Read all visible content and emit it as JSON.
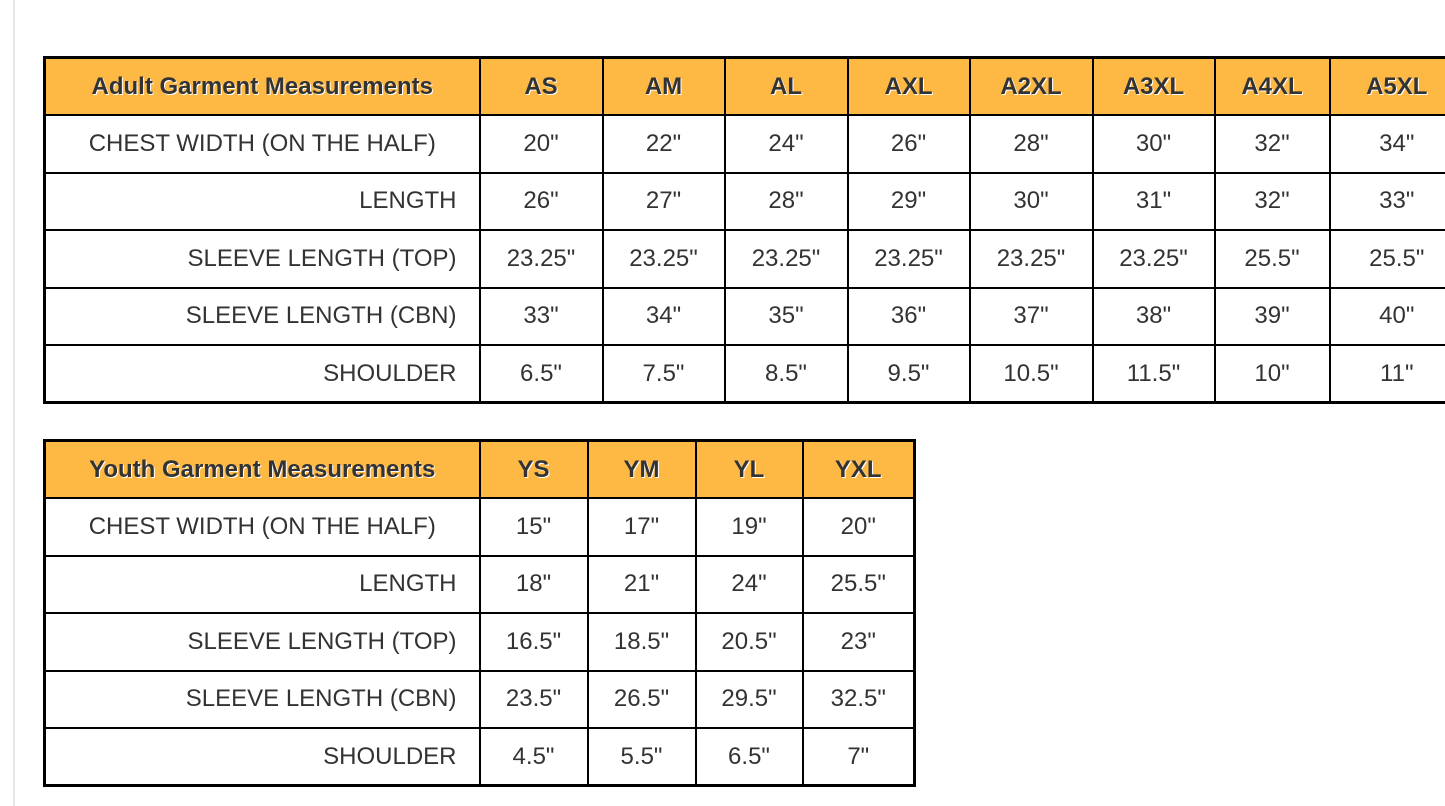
{
  "adult": {
    "title": "Adult Garment Measurements",
    "sizes": [
      "AS",
      "AM",
      "AL",
      "AXL",
      "A2XL",
      "A3XL",
      "A4XL",
      "A5XL"
    ],
    "rows": [
      {
        "label": "CHEST WIDTH (ON THE HALF)",
        "values": [
          "20\"",
          "22\"",
          "24\"",
          "26\"",
          "28\"",
          "30\"",
          "32\"",
          "34\""
        ]
      },
      {
        "label": "LENGTH",
        "values": [
          "26\"",
          "27\"",
          "28\"",
          "29\"",
          "30\"",
          "31\"",
          "32\"",
          "33\""
        ]
      },
      {
        "label": "SLEEVE LENGTH (TOP)",
        "values": [
          "23.25\"",
          "23.25\"",
          "23.25\"",
          "23.25\"",
          "23.25\"",
          "23.25\"",
          "25.5\"",
          "25.5\""
        ]
      },
      {
        "label": "SLEEVE LENGTH (CBN)",
        "values": [
          "33\"",
          "34\"",
          "35\"",
          "36\"",
          "37\"",
          "38\"",
          "39\"",
          "40\""
        ]
      },
      {
        "label": "SHOULDER",
        "values": [
          "6.5\"",
          "7.5\"",
          "8.5\"",
          "9.5\"",
          "10.5\"",
          "11.5\"",
          "10\"",
          "11\""
        ]
      }
    ]
  },
  "youth": {
    "title": "Youth Garment Measurements",
    "sizes": [
      "YS",
      "YM",
      "YL",
      "YXL"
    ],
    "rows": [
      {
        "label": "CHEST WIDTH (ON THE HALF)",
        "values": [
          "15\"",
          "17\"",
          "19\"",
          "20\""
        ]
      },
      {
        "label": "LENGTH",
        "values": [
          "18\"",
          "21\"",
          "24\"",
          "25.5\""
        ]
      },
      {
        "label": "SLEEVE LENGTH (TOP)",
        "values": [
          "16.5\"",
          "18.5\"",
          "20.5\"",
          "23\""
        ]
      },
      {
        "label": "SLEEVE LENGTH (CBN)",
        "values": [
          "23.5\"",
          "26.5\"",
          "29.5\"",
          "32.5\""
        ]
      },
      {
        "label": "SHOULDER",
        "values": [
          "4.5\"",
          "5.5\"",
          "6.5\"",
          "7\""
        ]
      }
    ]
  },
  "colors": {
    "header": "#fdb944",
    "border": "#000000",
    "text": "#333333"
  }
}
